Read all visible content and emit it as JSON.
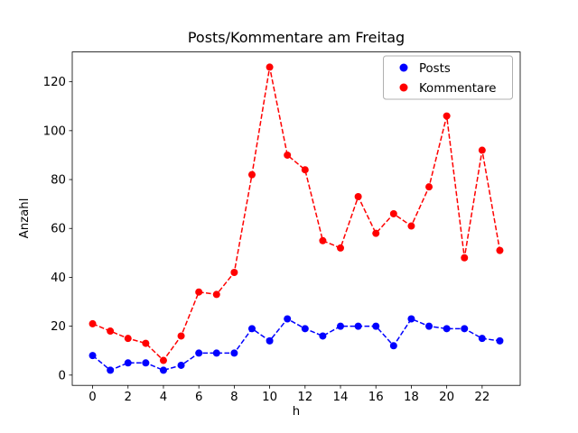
{
  "figure": {
    "background": "#ffffff"
  },
  "chart_data": {
    "type": "line",
    "title": "Posts/Kommentare am Freitag",
    "xlabel": "h",
    "ylabel": "Anzahl",
    "x": [
      0,
      1,
      2,
      3,
      4,
      5,
      6,
      7,
      8,
      9,
      10,
      11,
      12,
      13,
      14,
      15,
      16,
      17,
      18,
      19,
      20,
      21,
      22,
      23
    ],
    "series": [
      {
        "name": "Posts",
        "color": "#0000ff",
        "values": [
          8,
          2,
          5,
          5,
          2,
          4,
          9,
          9,
          9,
          19,
          14,
          23,
          19,
          16,
          20,
          20,
          20,
          12,
          23,
          20,
          19,
          19,
          15,
          14
        ]
      },
      {
        "name": "Kommentare",
        "color": "#ff0000",
        "values": [
          21,
          18,
          15,
          13,
          6,
          16,
          34,
          33,
          42,
          82,
          126,
          90,
          84,
          55,
          52,
          73,
          58,
          66,
          61,
          77,
          106,
          48,
          92,
          51
        ]
      }
    ],
    "xlim": [
      -1.15,
      24.15
    ],
    "ylim": [
      -4.2,
      132.2
    ],
    "xticks": [
      0,
      2,
      4,
      6,
      8,
      10,
      12,
      14,
      16,
      18,
      20,
      22
    ],
    "yticks": [
      0,
      20,
      40,
      60,
      80,
      100,
      120
    ],
    "line_style": "dashed",
    "marker": "circle",
    "grid": false,
    "legend_position": "upper right",
    "frame_color": "#000000"
  }
}
